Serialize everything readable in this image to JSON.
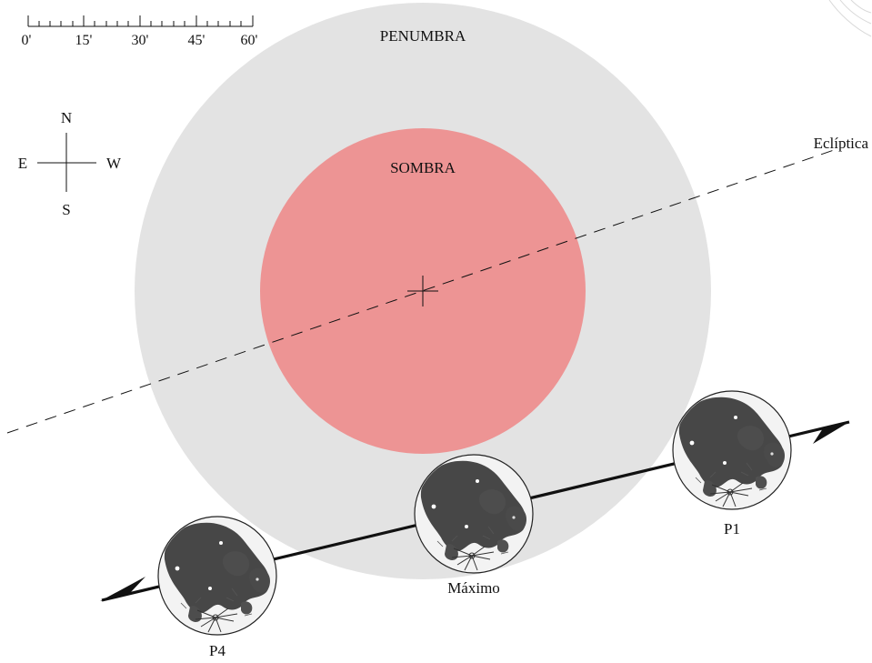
{
  "scale": {
    "ticks": [
      "0'",
      "15'",
      "30'",
      "45'",
      "60'"
    ]
  },
  "compass": {
    "north": "N",
    "south": "S",
    "east": "E",
    "west": "W"
  },
  "labels": {
    "penumbra": "PENUMBRA",
    "umbra": "SOMBRA",
    "ecliptic": "Eclíptica"
  },
  "moons": {
    "first": "P1",
    "greatest": "Máximo",
    "last": "P4"
  },
  "colors": {
    "penumbra": "#e3e3e3",
    "umbra": "#ed9494",
    "moon_face": "#f3f3f3",
    "maria": "#4a4a4a",
    "lines": "#111111"
  }
}
